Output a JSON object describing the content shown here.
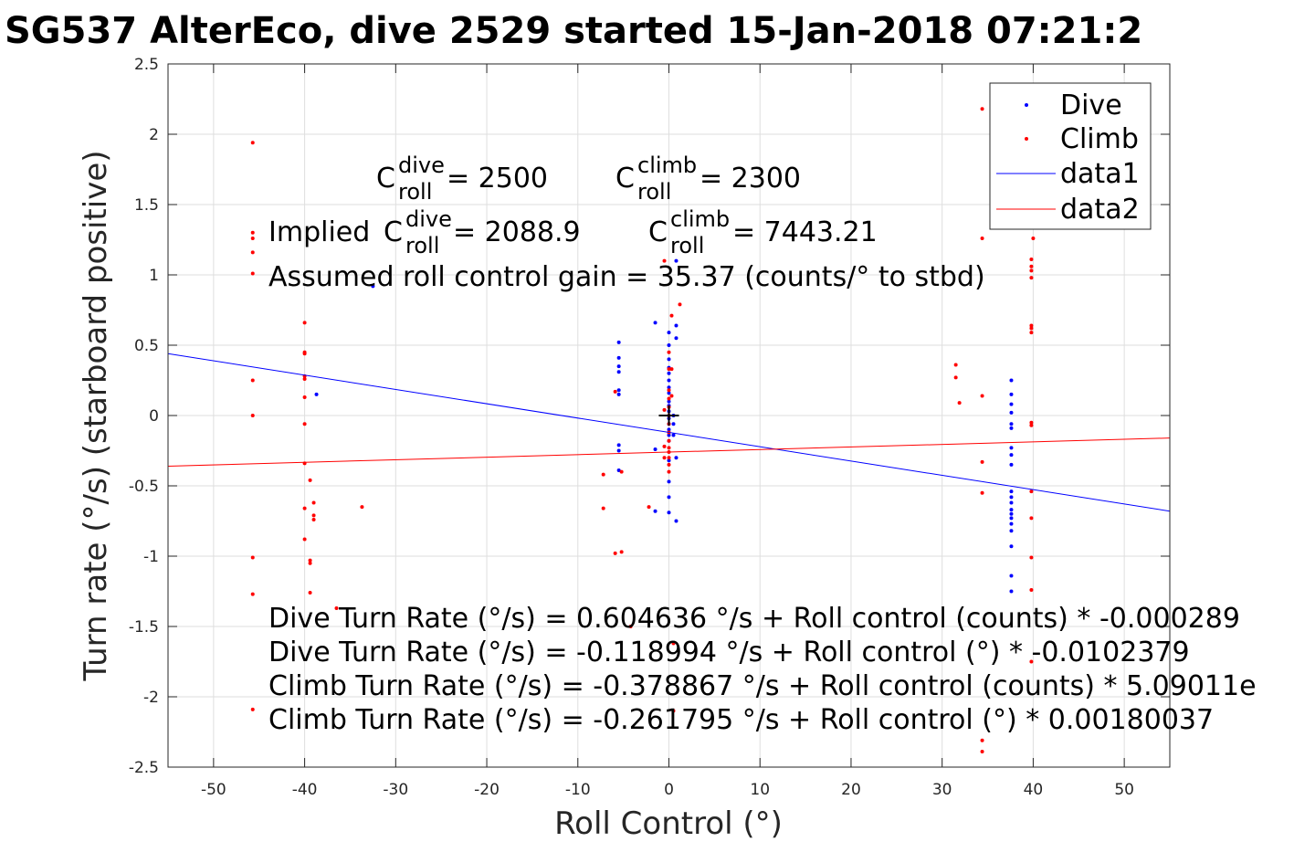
{
  "chart_data": {
    "type": "scatter",
    "title": "SG537 AlterEco, dive 2529 started 15-Jan-2018 07:21:2",
    "xlabel": "Roll Control (°)",
    "ylabel": "Turn rate (°/s) (starboard positive)",
    "xlim": [
      -55,
      55
    ],
    "ylim": [
      -2.5,
      2.5
    ],
    "xticks": [
      -50,
      -40,
      -30,
      -20,
      -10,
      0,
      10,
      20,
      30,
      40,
      50
    ],
    "xtick_labels": [
      "-50",
      "-40",
      "-30",
      "-20",
      "-10",
      "0",
      "10",
      "20",
      "30",
      "40",
      "50"
    ],
    "yticks": [
      -2.5,
      -2,
      -1.5,
      -1,
      -0.5,
      0,
      0.5,
      1,
      1.5,
      2,
      2.5
    ],
    "ytick_labels": [
      "-2.5",
      "-2",
      "-1.5",
      "-1",
      "-0.5",
      "0",
      "0.5",
      "1",
      "1.5",
      "2",
      "2.5"
    ],
    "grid": true,
    "legend_position": "top-right",
    "series": [
      {
        "name": "Dive",
        "kind": "points",
        "color": "#0000ff",
        "points": [
          [
            -32.5,
            0.92
          ],
          [
            -38.7,
            0.15
          ],
          [
            -5.5,
            0.52
          ],
          [
            -5.5,
            0.41
          ],
          [
            -5.5,
            0.35
          ],
          [
            -5.5,
            0.31
          ],
          [
            -5.5,
            0.18
          ],
          [
            -5.5,
            0.15
          ],
          [
            -5.5,
            -0.21
          ],
          [
            -5.5,
            -0.25
          ],
          [
            -5.5,
            -0.39
          ],
          [
            -1.5,
            0.66
          ],
          [
            -1.5,
            -0.24
          ],
          [
            -1.5,
            -0.68
          ],
          [
            0.0,
            0.59
          ],
          [
            0.0,
            0.5
          ],
          [
            0.0,
            0.4
          ],
          [
            0.0,
            0.34
          ],
          [
            0.0,
            0.3
          ],
          [
            0.0,
            0.25
          ],
          [
            0.0,
            0.2
          ],
          [
            0.0,
            0.16
          ],
          [
            0.0,
            0.1
          ],
          [
            0.0,
            0.07
          ],
          [
            0.0,
            0.03
          ],
          [
            0.0,
            -0.02
          ],
          [
            0.0,
            -0.06
          ],
          [
            0.0,
            -0.1
          ],
          [
            0.0,
            -0.14
          ],
          [
            0.0,
            -0.18
          ],
          [
            0.0,
            -0.32
          ],
          [
            0.0,
            -0.47
          ],
          [
            0.0,
            -0.58
          ],
          [
            0.0,
            -0.69
          ],
          [
            0.5,
            0.0
          ],
          [
            0.5,
            -0.06
          ],
          [
            0.5,
            -0.14
          ],
          [
            0.8,
            1.1
          ],
          [
            0.8,
            0.64
          ],
          [
            0.8,
            0.55
          ],
          [
            0.8,
            -0.3
          ],
          [
            0.8,
            -0.75
          ],
          [
            37.6,
            0.25
          ],
          [
            37.6,
            0.15
          ],
          [
            37.6,
            0.08
          ],
          [
            37.6,
            0.02
          ],
          [
            37.6,
            -0.06
          ],
          [
            37.6,
            -0.09
          ],
          [
            37.6,
            -0.23
          ],
          [
            37.6,
            -0.28
          ],
          [
            37.6,
            -0.35
          ],
          [
            37.6,
            -0.54
          ],
          [
            37.6,
            -0.58
          ],
          [
            37.6,
            -0.62
          ],
          [
            37.6,
            -0.67
          ],
          [
            37.6,
            -0.7
          ],
          [
            37.6,
            -0.73
          ],
          [
            37.6,
            -0.77
          ],
          [
            37.6,
            -0.82
          ],
          [
            37.6,
            -0.93
          ],
          [
            37.6,
            -1.14
          ],
          [
            37.6,
            -1.25
          ]
        ]
      },
      {
        "name": "Climb",
        "kind": "points",
        "color": "#ff0000",
        "points": [
          [
            -45.7,
            1.94
          ],
          [
            -45.7,
            1.3
          ],
          [
            -45.7,
            1.26
          ],
          [
            -45.7,
            1.16
          ],
          [
            -45.7,
            1.01
          ],
          [
            -45.7,
            0.25
          ],
          [
            -45.7,
            0.0
          ],
          [
            -45.7,
            -1.01
          ],
          [
            -45.7,
            -1.27
          ],
          [
            -45.7,
            -2.09
          ],
          [
            -40.0,
            0.66
          ],
          [
            -40.0,
            0.45
          ],
          [
            -40.0,
            0.44
          ],
          [
            -40.0,
            0.28
          ],
          [
            -40.0,
            0.26
          ],
          [
            -40.0,
            0.13
          ],
          [
            -40.0,
            -0.06
          ],
          [
            -40.0,
            -0.34
          ],
          [
            -40.0,
            -0.66
          ],
          [
            -40.0,
            -0.88
          ],
          [
            -39.4,
            -0.46
          ],
          [
            -39.4,
            -1.03
          ],
          [
            -39.4,
            -1.05
          ],
          [
            -39.4,
            -1.26
          ],
          [
            -39.0,
            -0.62
          ],
          [
            -39.0,
            -0.71
          ],
          [
            -39.0,
            -0.74
          ],
          [
            -36.5,
            -1.37
          ],
          [
            -33.7,
            -0.65
          ],
          [
            -7.2,
            -0.42
          ],
          [
            -7.2,
            -0.66
          ],
          [
            -5.9,
            0.17
          ],
          [
            -5.9,
            -0.98
          ],
          [
            -5.2,
            -0.4
          ],
          [
            -5.2,
            -0.97
          ],
          [
            -4.2,
            -1.5
          ],
          [
            -2.2,
            -0.65
          ],
          [
            -0.5,
            1.1
          ],
          [
            -0.5,
            0.04
          ],
          [
            -0.5,
            -0.22
          ],
          [
            -0.5,
            -0.3
          ],
          [
            0.0,
            0.45
          ],
          [
            0.0,
            0.33
          ],
          [
            0.0,
            0.18
          ],
          [
            0.0,
            0.12
          ],
          [
            0.0,
            0.06
          ],
          [
            0.0,
            0.0
          ],
          [
            0.0,
            -0.06
          ],
          [
            0.0,
            -0.12
          ],
          [
            0.0,
            -0.18
          ],
          [
            0.0,
            -0.23
          ],
          [
            0.0,
            -0.26
          ],
          [
            0.0,
            -0.3
          ],
          [
            0.0,
            -0.35
          ],
          [
            0.0,
            -0.4
          ],
          [
            0.3,
            0.71
          ],
          [
            0.3,
            0.33
          ],
          [
            0.3,
            0.14
          ],
          [
            0.5,
            -1.62
          ],
          [
            0.5,
            -2.1
          ],
          [
            1.2,
            0.79
          ],
          [
            31.5,
            0.36
          ],
          [
            31.5,
            0.27
          ],
          [
            31.9,
            0.09
          ],
          [
            34.4,
            2.18
          ],
          [
            34.4,
            1.26
          ],
          [
            34.4,
            0.14
          ],
          [
            34.4,
            -0.33
          ],
          [
            34.4,
            -0.55
          ],
          [
            34.4,
            -2.31
          ],
          [
            34.4,
            -2.39
          ],
          [
            39.5,
            2.19
          ],
          [
            39.8,
            1.11
          ],
          [
            39.8,
            1.06
          ],
          [
            39.8,
            1.03
          ],
          [
            39.8,
            0.98
          ],
          [
            39.8,
            0.64
          ],
          [
            39.8,
            0.62
          ],
          [
            39.8,
            0.59
          ],
          [
            39.8,
            -0.05
          ],
          [
            39.8,
            -0.07
          ],
          [
            39.8,
            -0.54
          ],
          [
            39.8,
            -0.73
          ],
          [
            39.8,
            -1.01
          ],
          [
            39.8,
            -1.24
          ],
          [
            39.8,
            -1.75
          ],
          [
            40.0,
            1.26
          ]
        ]
      },
      {
        "name": "data1",
        "kind": "line",
        "color": "#0000ff",
        "x": [
          -55,
          55
        ],
        "y": [
          0.44,
          -0.68
        ]
      },
      {
        "name": "data2",
        "kind": "line",
        "color": "#ff0000",
        "x": [
          -55,
          55
        ],
        "y": [
          -0.36,
          -0.16
        ]
      }
    ],
    "origin_marker": [
      0,
      0
    ],
    "annotations": {
      "c_dive": {
        "base": "C",
        "sup": "dive",
        "sub": "roll",
        "value": " = 2500"
      },
      "c_climb": {
        "base": "C",
        "sup": "climb",
        "sub": "roll",
        "value": " = 2300"
      },
      "implied_prefix": "Implied ",
      "implied_dive": {
        "base": "C",
        "sup": "dive",
        "sub": "roll",
        "value": " = 2088.9"
      },
      "implied_climb": {
        "base": "C",
        "sup": "climb",
        "sub": "roll",
        "value": " = 7443.21"
      },
      "gain": "Assumed roll control gain = 35.37 (counts/° to stbd)",
      "fit_lines": [
        "Dive Turn Rate (°/s) = 0.604636 °/s + Roll control (counts) * -0.000289",
        "Dive Turn Rate (°/s) = -0.118994 °/s + Roll control (°) * -0.0102379",
        "Climb Turn Rate (°/s) = -0.378867 °/s + Roll control (counts) * 5.09011e",
        "Climb Turn Rate (°/s) = -0.261795 °/s + Roll control (°) * 0.00180037"
      ]
    }
  }
}
